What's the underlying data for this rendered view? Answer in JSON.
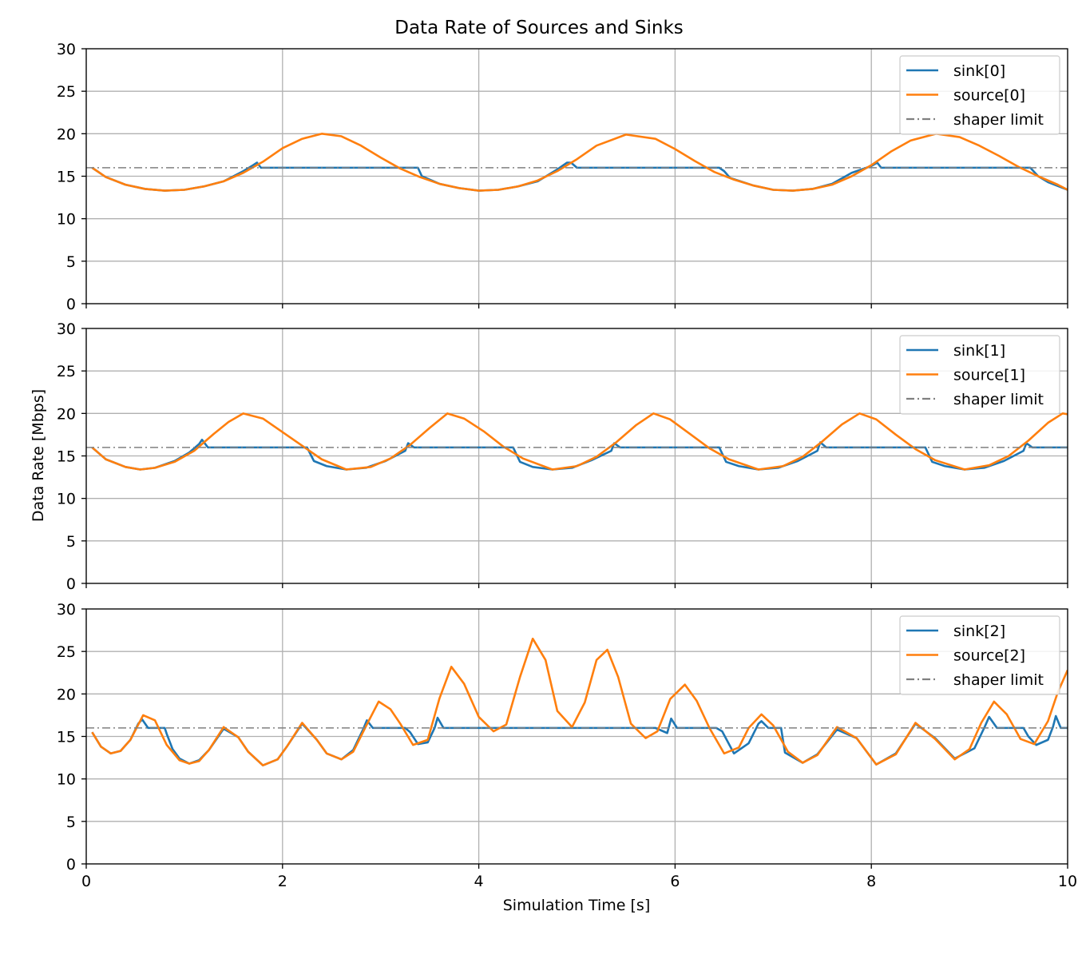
{
  "figure": {
    "title": "Data Rate of Sources and Sinks",
    "xlabel": "Simulation Time [s]",
    "ylabel": "Data Rate [Mbps]"
  },
  "colors": {
    "sink": "#1f77b4",
    "source": "#ff7f0e",
    "limit": "#808080",
    "grid": "#b0b0b0"
  },
  "chart_data": [
    {
      "type": "line",
      "xlim": [
        0,
        10
      ],
      "ylim": [
        0,
        30
      ],
      "xticks": [
        0,
        2,
        4,
        6,
        8,
        10
      ],
      "yticks": [
        0,
        5,
        10,
        15,
        20,
        25,
        30
      ],
      "grid": true,
      "legend_position": "top-right",
      "limit": 16,
      "series": [
        {
          "name": "sink[0]",
          "kind": "sink",
          "x": [
            0.06,
            0.2,
            0.4,
            0.6,
            0.8,
            1.0,
            1.2,
            1.4,
            1.6,
            1.7,
            1.74,
            1.78,
            2.0,
            2.5,
            3.0,
            3.38,
            3.42,
            3.6,
            3.8,
            4.0,
            4.2,
            4.4,
            4.6,
            4.8,
            4.9,
            4.94,
            5.0,
            5.5,
            6.0,
            6.45,
            6.5,
            6.56,
            6.8,
            7.0,
            7.2,
            7.4,
            7.6,
            7.8,
            8.0,
            8.06,
            8.1,
            8.5,
            9.0,
            9.5,
            9.62,
            9.7,
            9.8,
            10.0
          ],
          "y": [
            16.0,
            14.9,
            14.0,
            13.5,
            13.3,
            13.4,
            13.8,
            14.4,
            15.6,
            16.3,
            16.6,
            16.0,
            16.0,
            16.0,
            16.0,
            16.0,
            15.0,
            14.1,
            13.6,
            13.3,
            13.4,
            13.8,
            14.4,
            15.8,
            16.6,
            16.6,
            16.0,
            16.0,
            16.0,
            16.0,
            15.6,
            14.8,
            13.9,
            13.4,
            13.3,
            13.5,
            14.1,
            15.4,
            16.2,
            16.6,
            16.0,
            16.0,
            16.0,
            16.0,
            16.0,
            15.0,
            14.3,
            13.4
          ]
        },
        {
          "name": "source[0]",
          "kind": "source",
          "x": [
            0.06,
            0.2,
            0.4,
            0.6,
            0.8,
            1.0,
            1.2,
            1.4,
            1.6,
            1.8,
            2.0,
            2.2,
            2.4,
            2.6,
            2.8,
            3.0,
            3.2,
            3.4,
            3.6,
            3.8,
            4.0,
            4.2,
            4.4,
            4.6,
            4.8,
            5.0,
            5.2,
            5.5,
            5.8,
            6.0,
            6.2,
            6.4,
            6.6,
            6.8,
            7.0,
            7.2,
            7.4,
            7.6,
            7.8,
            8.0,
            8.2,
            8.4,
            8.66,
            8.9,
            9.1,
            9.3,
            9.5,
            9.7,
            9.9,
            10.0
          ],
          "y": [
            16.0,
            14.9,
            14.0,
            13.5,
            13.3,
            13.4,
            13.8,
            14.4,
            15.4,
            16.7,
            18.3,
            19.4,
            20.0,
            19.7,
            18.6,
            17.2,
            15.9,
            14.9,
            14.1,
            13.6,
            13.3,
            13.4,
            13.8,
            14.5,
            15.6,
            17.0,
            18.6,
            19.9,
            19.4,
            18.2,
            16.8,
            15.5,
            14.6,
            13.9,
            13.4,
            13.3,
            13.5,
            14.0,
            15.0,
            16.3,
            17.9,
            19.2,
            20.0,
            19.6,
            18.6,
            17.4,
            16.1,
            15.0,
            14.0,
            13.4
          ]
        },
        {
          "name": "shaper limit",
          "kind": "limit",
          "x": [
            0,
            10
          ],
          "y": [
            16,
            16
          ]
        }
      ]
    },
    {
      "type": "line",
      "xlim": [
        0,
        10
      ],
      "ylim": [
        0,
        30
      ],
      "xticks": [
        0,
        2,
        4,
        6,
        8,
        10
      ],
      "yticks": [
        0,
        5,
        10,
        15,
        20,
        25,
        30
      ],
      "grid": true,
      "legend_position": "top-right",
      "limit": 16,
      "series": [
        {
          "name": "sink[1]",
          "kind": "sink",
          "x": [
            0.06,
            0.2,
            0.4,
            0.55,
            0.7,
            0.9,
            1.05,
            1.15,
            1.18,
            1.24,
            1.5,
            2.0,
            2.25,
            2.32,
            2.45,
            2.65,
            2.85,
            3.05,
            3.25,
            3.28,
            3.34,
            3.6,
            4.0,
            4.35,
            4.42,
            4.55,
            4.75,
            4.95,
            5.15,
            5.35,
            5.38,
            5.44,
            6.0,
            6.45,
            6.52,
            6.65,
            6.85,
            7.05,
            7.25,
            7.45,
            7.48,
            7.54,
            8.0,
            8.55,
            8.62,
            8.75,
            8.95,
            9.15,
            9.35,
            9.55,
            9.58,
            9.64,
            10.0
          ],
          "y": [
            16.0,
            14.6,
            13.7,
            13.4,
            13.6,
            14.4,
            15.4,
            16.4,
            16.9,
            16.0,
            16.0,
            16.0,
            16.0,
            14.4,
            13.8,
            13.4,
            13.6,
            14.4,
            15.6,
            16.5,
            16.0,
            16.0,
            16.0,
            16.0,
            14.3,
            13.7,
            13.4,
            13.6,
            14.5,
            15.6,
            16.5,
            16.0,
            16.0,
            16.0,
            14.3,
            13.8,
            13.4,
            13.6,
            14.4,
            15.6,
            16.6,
            16.0,
            16.0,
            16.0,
            14.3,
            13.8,
            13.4,
            13.6,
            14.4,
            15.6,
            16.5,
            16.0,
            16.0
          ]
        },
        {
          "name": "source[1]",
          "kind": "source",
          "x": [
            0.06,
            0.2,
            0.4,
            0.55,
            0.7,
            0.9,
            1.1,
            1.3,
            1.45,
            1.6,
            1.8,
            2.0,
            2.2,
            2.4,
            2.65,
            2.9,
            3.1,
            3.3,
            3.5,
            3.68,
            3.85,
            4.05,
            4.25,
            4.45,
            4.75,
            5.0,
            5.2,
            5.4,
            5.6,
            5.78,
            5.95,
            6.15,
            6.35,
            6.55,
            6.85,
            7.1,
            7.3,
            7.5,
            7.7,
            7.88,
            8.05,
            8.25,
            8.45,
            8.65,
            8.95,
            9.2,
            9.4,
            9.6,
            9.8,
            9.95,
            10.0
          ],
          "y": [
            16.0,
            14.6,
            13.7,
            13.4,
            13.6,
            14.3,
            15.6,
            17.6,
            19.0,
            20.0,
            19.4,
            17.8,
            16.2,
            14.6,
            13.4,
            13.7,
            14.7,
            16.3,
            18.3,
            20.0,
            19.4,
            17.9,
            16.1,
            14.7,
            13.4,
            13.8,
            14.9,
            16.6,
            18.6,
            20.0,
            19.3,
            17.6,
            15.9,
            14.6,
            13.4,
            13.8,
            14.9,
            16.7,
            18.7,
            20.0,
            19.3,
            17.5,
            15.8,
            14.5,
            13.4,
            13.9,
            15.0,
            16.8,
            18.9,
            20.0,
            19.9
          ]
        },
        {
          "name": "shaper limit",
          "kind": "limit",
          "x": [
            0,
            10
          ],
          "y": [
            16,
            16
          ]
        }
      ]
    },
    {
      "type": "line",
      "xlim": [
        0,
        10
      ],
      "ylim": [
        0,
        30
      ],
      "xticks": [
        0,
        2,
        4,
        6,
        8,
        10
      ],
      "yticks": [
        0,
        5,
        10,
        15,
        20,
        25,
        30
      ],
      "grid": true,
      "legend_position": "top-right",
      "limit": 16,
      "series": [
        {
          "name": "sink[2]",
          "kind": "sink",
          "x": [
            0.06,
            0.15,
            0.25,
            0.35,
            0.45,
            0.53,
            0.57,
            0.63,
            0.8,
            0.82,
            0.88,
            0.95,
            1.05,
            1.15,
            1.25,
            1.4,
            1.55,
            1.65,
            1.8,
            1.95,
            2.05,
            2.2,
            2.35,
            2.45,
            2.6,
            2.72,
            2.82,
            2.86,
            2.92,
            3.25,
            3.3,
            3.38,
            3.48,
            3.55,
            3.58,
            3.64,
            4.0,
            4.5,
            5.0,
            5.5,
            5.8,
            5.92,
            5.96,
            6.02,
            6.42,
            6.48,
            6.6,
            6.75,
            6.85,
            6.88,
            6.95,
            7.08,
            7.12,
            7.3,
            7.45,
            7.65,
            7.85,
            8.05,
            8.25,
            8.45,
            8.65,
            8.85,
            9.05,
            9.15,
            9.2,
            9.28,
            9.55,
            9.6,
            9.68,
            9.8,
            9.85,
            9.88,
            9.93,
            10.0
          ],
          "y": [
            15.5,
            13.8,
            13.0,
            13.3,
            14.6,
            16.5,
            17.0,
            16.0,
            16.0,
            15.3,
            13.5,
            12.4,
            11.8,
            12.2,
            13.4,
            15.9,
            14.9,
            13.2,
            11.6,
            12.3,
            13.9,
            16.5,
            14.6,
            13.0,
            12.3,
            13.4,
            15.8,
            16.9,
            16.0,
            16.0,
            15.5,
            14.1,
            14.3,
            16.0,
            17.2,
            16.0,
            16.0,
            16.0,
            16.0,
            16.0,
            16.0,
            15.4,
            17.1,
            16.0,
            16.0,
            15.6,
            13.0,
            14.2,
            16.5,
            16.8,
            16.0,
            16.0,
            13.1,
            11.9,
            12.9,
            15.8,
            14.8,
            11.7,
            13.0,
            16.5,
            14.8,
            12.4,
            13.6,
            16.0,
            17.3,
            16.0,
            16.0,
            15.0,
            14.0,
            14.6,
            16.1,
            17.4,
            16.0,
            16.0
          ]
        },
        {
          "name": "source[2]",
          "kind": "source",
          "x": [
            0.06,
            0.15,
            0.25,
            0.35,
            0.45,
            0.58,
            0.7,
            0.82,
            0.95,
            1.05,
            1.15,
            1.25,
            1.4,
            1.55,
            1.65,
            1.8,
            1.95,
            2.05,
            2.2,
            2.35,
            2.45,
            2.6,
            2.72,
            2.85,
            2.98,
            3.1,
            3.2,
            3.33,
            3.48,
            3.6,
            3.72,
            3.85,
            4.0,
            4.15,
            4.28,
            4.42,
            4.55,
            4.68,
            4.8,
            4.95,
            5.08,
            5.2,
            5.31,
            5.42,
            5.55,
            5.7,
            5.82,
            5.95,
            6.1,
            6.22,
            6.35,
            6.5,
            6.65,
            6.75,
            6.88,
            7.0,
            7.15,
            7.3,
            7.45,
            7.65,
            7.85,
            8.05,
            8.25,
            8.45,
            8.65,
            8.85,
            9.0,
            9.12,
            9.25,
            9.38,
            9.52,
            9.66,
            9.8,
            9.9,
            10.0
          ],
          "y": [
            15.5,
            13.8,
            13.0,
            13.3,
            14.6,
            17.5,
            16.9,
            14.0,
            12.2,
            11.8,
            12.1,
            13.4,
            16.1,
            14.9,
            13.2,
            11.6,
            12.3,
            13.9,
            16.6,
            14.6,
            13.0,
            12.3,
            13.2,
            16.2,
            19.1,
            18.2,
            16.5,
            14.0,
            14.6,
            19.5,
            23.2,
            21.2,
            17.3,
            15.6,
            16.4,
            22.0,
            26.5,
            24.0,
            18.0,
            16.1,
            19.0,
            24.0,
            25.2,
            22.0,
            16.5,
            14.8,
            15.6,
            19.4,
            21.1,
            19.2,
            16.0,
            13.0,
            13.7,
            16.0,
            17.6,
            16.3,
            13.2,
            11.9,
            12.8,
            16.1,
            14.8,
            11.7,
            12.9,
            16.6,
            14.7,
            12.3,
            13.5,
            16.6,
            19.1,
            17.6,
            14.7,
            14.1,
            16.8,
            20.2,
            22.8
          ]
        },
        {
          "name": "shaper limit",
          "kind": "limit",
          "x": [
            0,
            10
          ],
          "y": [
            16,
            16
          ]
        }
      ]
    }
  ]
}
